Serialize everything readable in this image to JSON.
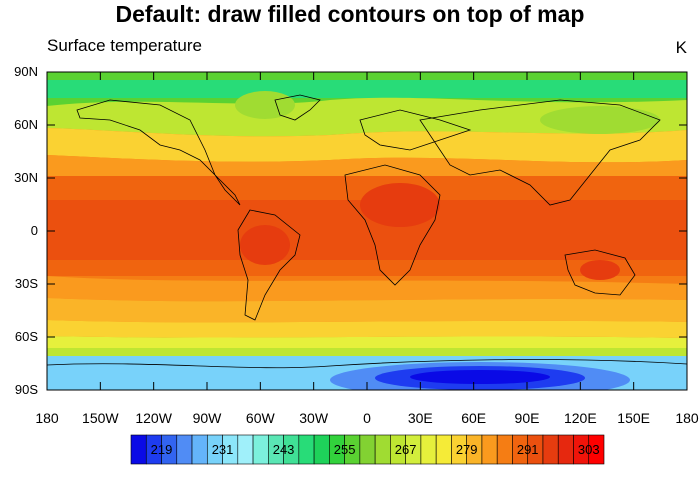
{
  "title": "Default: draw filled contours on top of map",
  "subtitle_left": "Surface temperature",
  "subtitle_right": "K",
  "map": {
    "projection": "cylindrical-equidistant",
    "lat_range": [
      -90,
      90
    ],
    "lon_range": [
      -180,
      180
    ],
    "lat_ticks": [
      {
        "lat": 90,
        "label": "90N"
      },
      {
        "lat": 60,
        "label": "60N"
      },
      {
        "lat": 30,
        "label": "30N"
      },
      {
        "lat": 0,
        "label": "0"
      },
      {
        "lat": -30,
        "label": "30S"
      },
      {
        "lat": -60,
        "label": "60S"
      },
      {
        "lat": -90,
        "label": "90S"
      }
    ],
    "lon_ticks": [
      {
        "lon": -180,
        "label": "180"
      },
      {
        "lon": -150,
        "label": "150W"
      },
      {
        "lon": -120,
        "label": "120W"
      },
      {
        "lon": -90,
        "label": "90W"
      },
      {
        "lon": -60,
        "label": "60W"
      },
      {
        "lon": -30,
        "label": "30W"
      },
      {
        "lon": 0,
        "label": "0"
      },
      {
        "lon": 30,
        "label": "30E"
      },
      {
        "lon": 60,
        "label": "60E"
      },
      {
        "lon": 90,
        "label": "90E"
      },
      {
        "lon": 120,
        "label": "120E"
      },
      {
        "lon": 150,
        "label": "150E"
      },
      {
        "lon": 180,
        "label": "180"
      }
    ]
  },
  "colorbar": {
    "levels_start": 216,
    "level_step": 3,
    "labels": [
      {
        "value": 219,
        "label": "219"
      },
      {
        "value": 231,
        "label": "231"
      },
      {
        "value": 243,
        "label": "243"
      },
      {
        "value": 255,
        "label": "255"
      },
      {
        "value": 267,
        "label": "267"
      },
      {
        "value": 279,
        "label": "279"
      },
      {
        "value": 291,
        "label": "291"
      },
      {
        "value": 303,
        "label": "303"
      }
    ],
    "colors": [
      "#0a0ae6",
      "#1e3cf0",
      "#3264f0",
      "#508cf5",
      "#64b4fa",
      "#78d2fa",
      "#8ce6fa",
      "#a0f0fa",
      "#7cf0dc",
      "#5ae6b4",
      "#40e096",
      "#28dc78",
      "#1ed25a",
      "#32d23c",
      "#5ad232",
      "#82d232",
      "#a0dc32",
      "#bee632",
      "#d2ee3c",
      "#e6f03c",
      "#f5eb37",
      "#fad232",
      "#fab428",
      "#fa9a1e",
      "#f57d14",
      "#f0640f",
      "#eb500f",
      "#e63c0f",
      "#e6280f",
      "#f0140a",
      "#ff0000"
    ]
  }
}
